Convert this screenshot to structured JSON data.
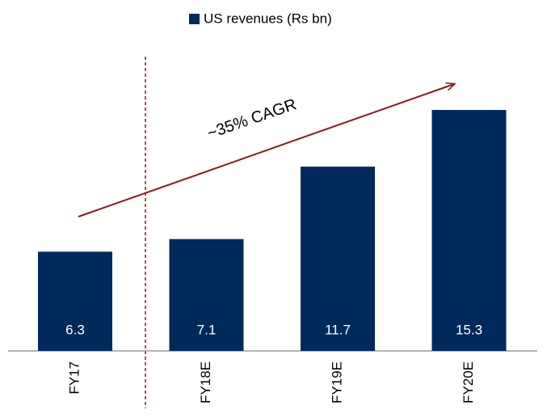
{
  "chart_data": {
    "type": "bar",
    "categories": [
      "FY17",
      "FY18E",
      "FY19E",
      "FY20E"
    ],
    "series": [
      {
        "name": "US revenues (Rs bn)",
        "color": "#002a5c",
        "values": [
          6.3,
          7.1,
          11.7,
          15.3
        ]
      }
    ],
    "annotations": [
      "~35% CAGR"
    ],
    "legend": "top"
  }
}
